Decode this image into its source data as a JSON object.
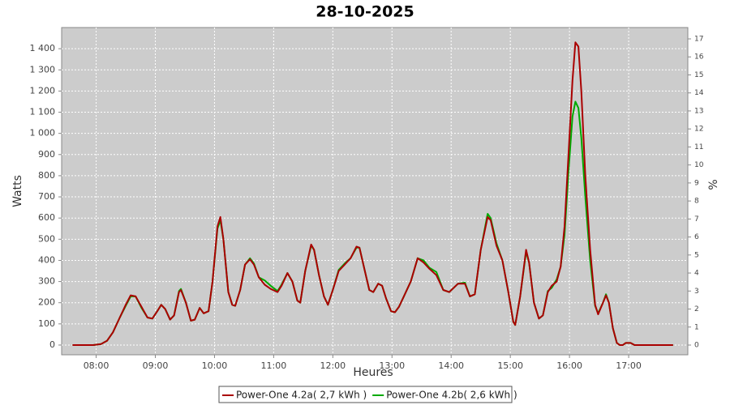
{
  "chart_data": {
    "type": "line",
    "title": "28-10-2025",
    "x_label": "Heures",
    "y_label": "Watts",
    "y2_label": "%",
    "x": [
      456,
      477,
      485,
      491,
      497,
      504,
      510,
      515,
      520,
      526,
      532,
      537,
      542,
      546,
      550,
      555,
      559,
      564,
      566,
      571,
      576,
      580,
      585,
      589,
      594,
      598,
      603,
      606,
      609,
      614,
      618,
      621,
      626,
      631,
      636,
      640,
      645,
      651,
      657,
      664,
      668,
      674,
      679,
      684,
      687,
      692,
      698,
      701,
      706,
      711,
      715,
      720,
      726,
      732,
      738,
      744,
      747,
      752,
      757,
      761,
      766,
      770,
      774,
      779,
      783,
      787,
      792,
      799,
      806,
      812,
      818,
      825,
      832,
      838,
      847,
      854,
      859,
      864,
      870,
      877,
      880,
      886,
      892,
      898,
      903,
      905,
      910,
      916,
      919,
      924,
      929,
      933,
      938,
      942,
      947,
      951,
      955,
      959,
      963,
      966,
      969,
      972,
      976,
      981,
      986,
      989,
      994,
      997,
      1000,
      1004,
      1008,
      1011,
      1014,
      1017,
      1022,
      1026,
      1065
    ],
    "series": [
      {
        "name": "Power-One 4.2a( 2,7 kWh )",
        "color": "#aa0000",
        "values": [
          0,
          0,
          5,
          20,
          60,
          130,
          190,
          235,
          230,
          180,
          130,
          125,
          160,
          190,
          170,
          120,
          140,
          250,
          260,
          200,
          115,
          120,
          175,
          150,
          160,
          300,
          560,
          605,
          500,
          250,
          190,
          185,
          260,
          380,
          405,
          380,
          320,
          285,
          265,
          250,
          280,
          340,
          300,
          210,
          200,
          350,
          475,
          450,
          330,
          230,
          190,
          260,
          350,
          380,
          410,
          465,
          460,
          360,
          260,
          250,
          290,
          280,
          220,
          160,
          155,
          180,
          230,
          300,
          410,
          390,
          360,
          330,
          260,
          250,
          290,
          290,
          230,
          240,
          450,
          605,
          590,
          470,
          400,
          250,
          110,
          95,
          230,
          450,
          390,
          200,
          125,
          140,
          250,
          280,
          300,
          370,
          560,
          900,
          1250,
          1430,
          1410,
          1200,
          800,
          450,
          190,
          145,
          200,
          235,
          200,
          80,
          10,
          0,
          0,
          10,
          10,
          0,
          0
        ]
      },
      {
        "name": "Power-One 4.2b( 2,6 kWh )",
        "color": "#00aa00",
        "values": [
          0,
          0,
          5,
          20,
          60,
          130,
          185,
          230,
          230,
          175,
          130,
          125,
          160,
          190,
          170,
          120,
          140,
          255,
          265,
          200,
          115,
          120,
          175,
          150,
          160,
          300,
          550,
          590,
          500,
          250,
          190,
          185,
          260,
          380,
          410,
          385,
          320,
          305,
          280,
          255,
          285,
          340,
          300,
          210,
          200,
          350,
          470,
          450,
          330,
          230,
          190,
          260,
          355,
          385,
          410,
          460,
          460,
          360,
          260,
          250,
          290,
          280,
          220,
          160,
          155,
          180,
          230,
          300,
          410,
          400,
          365,
          345,
          260,
          250,
          290,
          295,
          230,
          240,
          450,
          620,
          600,
          480,
          400,
          250,
          110,
          95,
          230,
          440,
          390,
          200,
          125,
          140,
          255,
          270,
          310,
          370,
          520,
          820,
          1080,
          1150,
          1120,
          980,
          700,
          400,
          185,
          150,
          200,
          240,
          200,
          80,
          10,
          0,
          0,
          10,
          10,
          0,
          0
        ]
      }
    ],
    "xlim": [
      445,
      1080
    ],
    "xticks": [
      {
        "value": 480,
        "label": "08:00"
      },
      {
        "value": 540,
        "label": "09:00"
      },
      {
        "value": 600,
        "label": "10:00"
      },
      {
        "value": 660,
        "label": "11:00"
      },
      {
        "value": 720,
        "label": "12:00"
      },
      {
        "value": 780,
        "label": "13:00"
      },
      {
        "value": 840,
        "label": "14:00"
      },
      {
        "value": 900,
        "label": "15:00"
      },
      {
        "value": 960,
        "label": "16:00"
      },
      {
        "value": 1020,
        "label": "17:00"
      }
    ],
    "ylim": [
      -46,
      1500
    ],
    "yticks": [
      0,
      100,
      200,
      300,
      400,
      500,
      600,
      700,
      800,
      900,
      {
        "value": 1000,
        "label": "1 000"
      },
      {
        "value": 1100,
        "label": "1 100"
      },
      {
        "value": 1200,
        "label": "1 200"
      },
      {
        "value": 1300,
        "label": "1 300"
      },
      {
        "value": 1400,
        "label": "1 400"
      }
    ],
    "y2lim": [
      -0.54,
      17.63
    ],
    "y2ticks": [
      0,
      1,
      2,
      3,
      4,
      5,
      6,
      7,
      8,
      9,
      10,
      11,
      12,
      13,
      14,
      15,
      16,
      17
    ],
    "grid": true
  }
}
